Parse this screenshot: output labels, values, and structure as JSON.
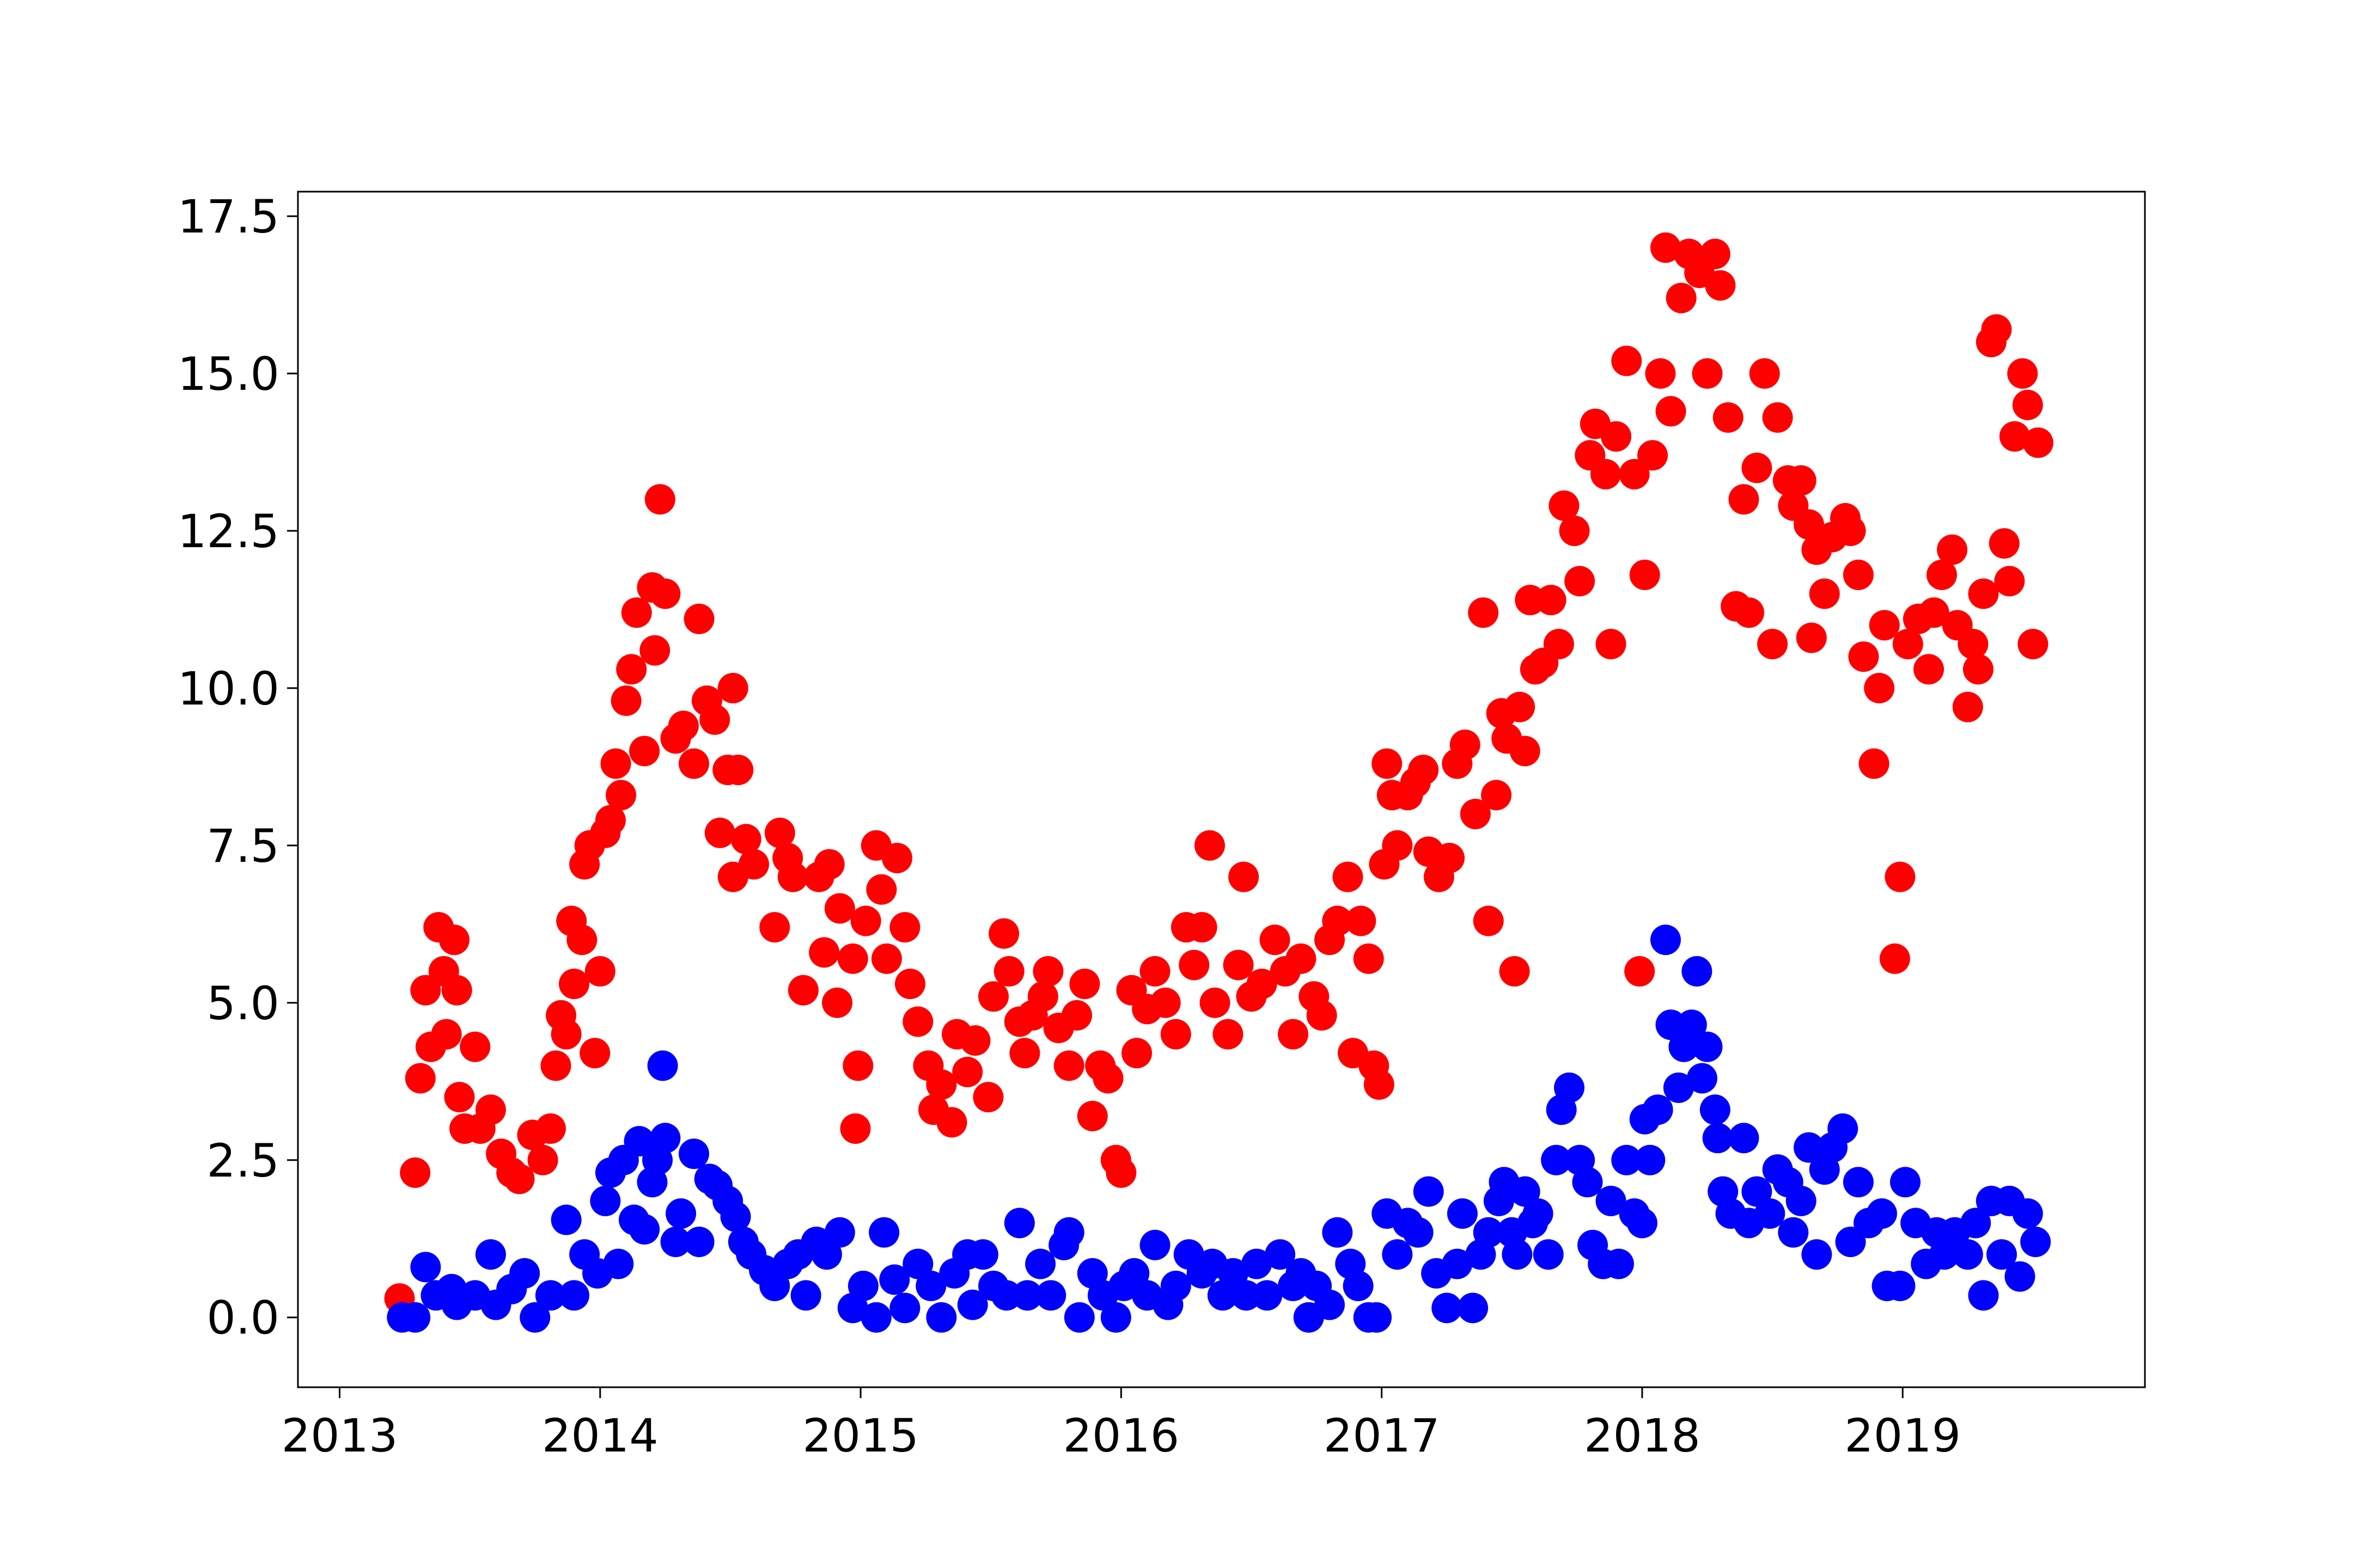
{
  "chart_data": {
    "type": "scatter",
    "xlim": [
      2012.84,
      2019.93
    ],
    "ylim": [
      -1.11,
      17.89
    ],
    "xticks": [
      2013,
      2014,
      2015,
      2016,
      2017,
      2018,
      2019
    ],
    "yticks": [
      {
        "value": 0,
        "label": "0.0"
      },
      2.5,
      {
        "value": 5,
        "label": "5.0"
      },
      7.5,
      {
        "value": 10,
        "label": "10.0"
      },
      12.5,
      {
        "value": 15,
        "label": "15.0"
      },
      17.5
    ],
    "series": [
      {
        "color": "#ff0000",
        "x": [
          2013.23,
          2013.29,
          2013.31,
          2013.33,
          2013.35,
          2013.38,
          2013.4,
          2013.41,
          2013.44,
          2013.45,
          2013.46,
          2013.48,
          2013.52,
          2013.54,
          2013.58,
          2013.62,
          2013.66,
          2013.69,
          2013.74,
          2013.78,
          2013.81,
          2013.83,
          2013.85,
          2013.87,
          2013.89,
          2013.9,
          2013.93,
          2013.94,
          2013.96,
          2013.98,
          2014.0,
          2014.02,
          2014.04,
          2014.06,
          2014.08,
          2014.1,
          2014.12,
          2014.14,
          2014.17,
          2014.2,
          2014.21,
          2014.23,
          2014.25,
          2014.29,
          2014.32,
          2014.36,
          2014.38,
          2014.41,
          2014.44,
          2014.46,
          2014.49,
          2014.51,
          2014.53,
          2014.51,
          2014.56,
          2014.59,
          2014.67,
          2014.69,
          2014.72,
          2014.74,
          2014.78,
          2014.84,
          2014.86,
          2014.88,
          2014.91,
          2014.92,
          2014.97,
          2014.98,
          2014.99,
          2015.02,
          2015.06,
          2015.08,
          2015.1,
          2015.14,
          2015.17,
          2015.19,
          2015.22,
          2015.26,
          2015.28,
          2015.31,
          2015.35,
          2015.37,
          2015.41,
          2015.44,
          2015.49,
          2015.51,
          2015.55,
          2015.57,
          2015.61,
          2015.63,
          2015.66,
          2015.7,
          2015.72,
          2015.76,
          2015.8,
          2015.83,
          2015.86,
          2015.89,
          2015.92,
          2015.95,
          2015.98,
          2016.0,
          2016.04,
          2016.06,
          2016.1,
          2016.13,
          2016.17,
          2016.21,
          2016.25,
          2016.28,
          2016.31,
          2016.34,
          2016.36,
          2016.41,
          2016.45,
          2016.47,
          2016.5,
          2016.54,
          2016.59,
          2016.63,
          2016.66,
          2016.69,
          2016.74,
          2016.77,
          2016.8,
          2016.83,
          2016.87,
          2016.89,
          2016.92,
          2016.95,
          2016.97,
          2016.99,
          2017.01,
          2017.02,
          2017.04,
          2017.06,
          2017.1,
          2017.13,
          2017.16,
          2017.18,
          2017.22,
          2017.26,
          2017.29,
          2017.32,
          2017.36,
          2017.39,
          2017.41,
          2017.44,
          2017.46,
          2017.48,
          2017.51,
          2017.53,
          2017.55,
          2017.57,
          2017.59,
          2017.62,
          2017.65,
          2017.68,
          2017.7,
          2017.74,
          2017.76,
          2017.8,
          2017.82,
          2017.86,
          2017.88,
          2017.9,
          2017.94,
          2017.97,
          2017.99,
          2018.01,
          2018.04,
          2018.07,
          2018.09,
          2018.11,
          2018.15,
          2018.18,
          2018.22,
          2018.25,
          2018.28,
          2018.3,
          2018.33,
          2018.36,
          2018.39,
          2018.41,
          2018.44,
          2018.47,
          2018.5,
          2018.52,
          2018.56,
          2018.58,
          2018.61,
          2018.64,
          2018.67,
          2018.65,
          2018.7,
          2018.73,
          2018.78,
          2018.8,
          2018.83,
          2018.85,
          2018.89,
          2018.91,
          2018.93,
          2018.97,
          2018.99,
          2019.02,
          2019.06,
          2019.1,
          2019.12,
          2019.15,
          2019.19,
          2019.21,
          2019.25,
          2019.27,
          2019.29,
          2019.31,
          2019.34,
          2019.36,
          2019.39,
          2019.41,
          2019.43,
          2019.46,
          2019.48,
          2019.5,
          2019.52
        ],
        "values": [
          0.3,
          2.3,
          3.8,
          5.2,
          4.3,
          6.2,
          5.5,
          4.5,
          6.0,
          5.2,
          3.5,
          3.0,
          4.3,
          3.0,
          3.3,
          2.6,
          2.3,
          2.2,
          2.9,
          2.5,
          3.0,
          4.0,
          4.8,
          4.5,
          6.3,
          5.3,
          6.0,
          7.2,
          7.5,
          4.2,
          5.5,
          7.7,
          7.9,
          8.8,
          8.3,
          9.8,
          10.3,
          11.2,
          9.0,
          11.6,
          10.6,
          13.0,
          11.5,
          9.2,
          9.4,
          8.8,
          11.1,
          9.8,
          9.5,
          7.7,
          8.7,
          10.0,
          8.7,
          7.0,
          7.6,
          7.2,
          6.2,
          7.7,
          7.3,
          7.0,
          5.2,
          7.0,
          5.8,
          7.2,
          5.0,
          6.5,
          5.7,
          3.0,
          4.0,
          6.3,
          7.5,
          6.8,
          5.7,
          7.3,
          6.2,
          5.3,
          4.7,
          4.0,
          3.3,
          3.7,
          3.1,
          4.5,
          3.9,
          4.4,
          3.5,
          5.1,
          6.1,
          5.5,
          4.7,
          4.2,
          4.8,
          5.1,
          5.5,
          4.6,
          4.0,
          4.8,
          5.3,
          3.2,
          4.0,
          3.8,
          2.5,
          2.3,
          5.2,
          4.2,
          4.9,
          5.5,
          5.0,
          4.5,
          6.2,
          5.6,
          6.2,
          7.5,
          5.0,
          4.5,
          5.6,
          7.0,
          5.1,
          5.3,
          6.0,
          5.5,
          4.5,
          5.7,
          5.1,
          4.8,
          6.0,
          6.3,
          7.0,
          4.2,
          6.3,
          5.7,
          4.0,
          3.7,
          7.2,
          8.8,
          8.3,
          7.5,
          8.3,
          8.5,
          8.7,
          7.4,
          7.0,
          7.3,
          8.8,
          9.1,
          8.0,
          11.2,
          6.3,
          8.3,
          9.6,
          9.2,
          5.5,
          9.7,
          9.0,
          11.4,
          10.3,
          10.4,
          11.4,
          10.7,
          12.9,
          12.5,
          11.7,
          13.7,
          14.2,
          13.4,
          10.7,
          14.0,
          15.2,
          13.4,
          5.5,
          11.8,
          13.7,
          15.0,
          17.0,
          14.4,
          16.2,
          16.9,
          16.6,
          15.0,
          16.9,
          16.4,
          14.3,
          11.3,
          13.0,
          11.2,
          13.5,
          15.0,
          10.7,
          14.3,
          13.3,
          12.9,
          13.3,
          12.6,
          12.2,
          10.8,
          11.5,
          12.4,
          12.7,
          12.5,
          11.8,
          10.5,
          8.8,
          10.0,
          11.0,
          5.7,
          7.0,
          10.7,
          11.1,
          10.3,
          11.2,
          11.8,
          12.2,
          11.0,
          9.7,
          10.7,
          10.3,
          11.5,
          15.5,
          15.7,
          12.3,
          11.7,
          14.0,
          15.0,
          14.5,
          10.7,
          13.9
        ]
      },
      {
        "color": "#0000ff",
        "x": [
          2013.24,
          2013.29,
          2013.33,
          2013.37,
          2013.43,
          2013.45,
          2013.52,
          2013.58,
          2013.6,
          2013.66,
          2013.71,
          2013.75,
          2013.81,
          2013.87,
          2013.9,
          2013.94,
          2013.99,
          2014.02,
          2014.04,
          2014.07,
          2014.09,
          2014.13,
          2014.15,
          2014.17,
          2014.2,
          2014.22,
          2014.24,
          2014.25,
          2014.29,
          2014.31,
          2014.36,
          2014.38,
          2014.42,
          2014.45,
          2014.49,
          2014.52,
          2014.55,
          2014.58,
          2014.63,
          2014.67,
          2014.72,
          2014.76,
          2014.79,
          2014.83,
          2014.87,
          2014.92,
          2014.97,
          2015.01,
          2015.06,
          2015.09,
          2015.13,
          2015.17,
          2015.22,
          2015.27,
          2015.31,
          2015.36,
          2015.41,
          2015.43,
          2015.47,
          2015.51,
          2015.56,
          2015.61,
          2015.64,
          2015.69,
          2015.73,
          2015.78,
          2015.8,
          2015.84,
          2015.89,
          2015.93,
          2015.98,
          2016.01,
          2016.05,
          2016.1,
          2016.13,
          2016.18,
          2016.21,
          2016.26,
          2016.31,
          2016.35,
          2016.39,
          2016.43,
          2016.48,
          2016.52,
          2016.56,
          2016.61,
          2016.66,
          2016.69,
          2016.72,
          2016.75,
          2016.8,
          2016.83,
          2016.88,
          2016.91,
          2016.95,
          2016.98,
          2017.02,
          2017.06,
          2017.1,
          2017.14,
          2017.18,
          2017.21,
          2017.25,
          2017.29,
          2017.31,
          2017.35,
          2017.38,
          2017.41,
          2017.45,
          2017.47,
          2017.5,
          2017.52,
          2017.55,
          2017.58,
          2017.6,
          2017.64,
          2017.67,
          2017.69,
          2017.72,
          2017.76,
          2017.79,
          2017.81,
          2017.85,
          2017.88,
          2017.91,
          2017.94,
          2017.97,
          2018.0,
          2018.01,
          2018.03,
          2018.06,
          2018.09,
          2018.11,
          2018.14,
          2018.16,
          2018.19,
          2018.21,
          2018.23,
          2018.25,
          2018.28,
          2018.29,
          2018.31,
          2018.34,
          2018.39,
          2018.41,
          2018.44,
          2018.49,
          2018.52,
          2018.56,
          2018.58,
          2018.61,
          2018.64,
          2018.67,
          2018.7,
          2018.73,
          2018.77,
          2018.8,
          2018.83,
          2018.87,
          2018.92,
          2018.94,
          2018.99,
          2019.01,
          2019.05,
          2019.09,
          2019.13,
          2019.16,
          2019.2,
          2019.25,
          2019.28,
          2019.31,
          2019.34,
          2019.38,
          2019.41,
          2019.45,
          2019.48,
          2019.51
        ],
        "values": [
          0,
          0,
          0.8,
          0.35,
          0.45,
          0.2,
          0.35,
          1.0,
          0.2,
          0.45,
          0.7,
          0,
          0.35,
          1.55,
          0.35,
          1.0,
          0.7,
          1.85,
          2.3,
          0.85,
          2.5,
          1.55,
          2.8,
          1.4,
          2.15,
          2.5,
          4.0,
          2.85,
          1.2,
          1.65,
          2.6,
          1.2,
          2.2,
          2.1,
          1.85,
          1.6,
          1.2,
          1.0,
          0.75,
          0.5,
          0.85,
          1.0,
          0.35,
          1.2,
          1.0,
          1.35,
          0.15,
          0.5,
          0,
          1.35,
          0.6,
          0.15,
          0.85,
          0.5,
          0,
          0.7,
          1.0,
          0.2,
          1.0,
          0.5,
          0.35,
          1.5,
          0.35,
          0.85,
          0.35,
          1.15,
          1.35,
          0,
          0.7,
          0.35,
          0,
          0.5,
          0.7,
          0.35,
          1.15,
          0.2,
          0.5,
          1.0,
          0.7,
          0.85,
          0.35,
          0.7,
          0.35,
          0.85,
          0.35,
          1.0,
          0.5,
          0.7,
          0,
          0.5,
          0.2,
          1.35,
          0.85,
          0.5,
          0,
          0,
          1.65,
          1.0,
          1.5,
          1.35,
          2.0,
          0.7,
          0.15,
          0.85,
          1.65,
          0.15,
          1.0,
          1.35,
          1.85,
          2.15,
          1.35,
          1.0,
          2.0,
          1.5,
          1.65,
          1.0,
          2.5,
          3.3,
          3.65,
          2.5,
          2.15,
          1.15,
          0.85,
          1.85,
          0.85,
          2.5,
          1.65,
          1.5,
          3.15,
          2.5,
          3.3,
          6.0,
          4.65,
          3.65,
          4.3,
          4.65,
          5.5,
          3.8,
          4.3,
          3.3,
          2.85,
          2.0,
          1.65,
          2.85,
          1.5,
          2.0,
          1.65,
          2.35,
          2.15,
          1.35,
          1.85,
          2.7,
          1.0,
          2.35,
          2.7,
          3.0,
          1.2,
          2.15,
          1.5,
          1.65,
          0.5,
          0.5,
          2.15,
          1.5,
          0.85,
          1.35,
          1.0,
          1.35,
          1.0,
          1.5,
          0.35,
          1.85,
          1.0,
          1.85,
          0.65,
          1.65,
          1.2
        ]
      }
    ]
  }
}
